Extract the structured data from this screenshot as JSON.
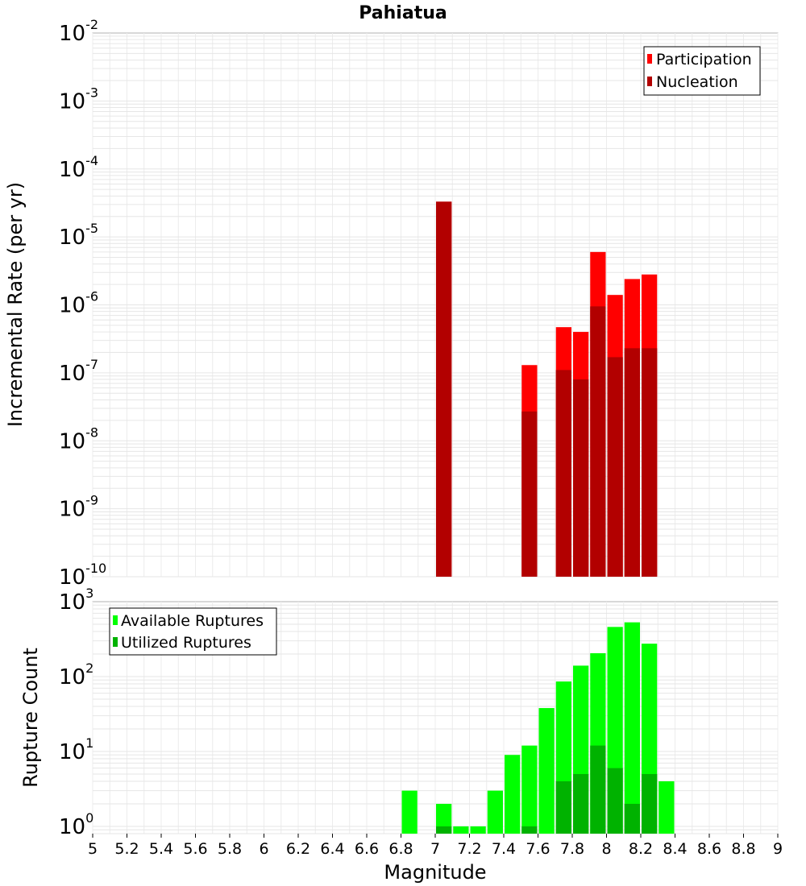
{
  "chart_data": [
    {
      "type": "bar",
      "title": "Pahiatua",
      "xlabel": "Magnitude",
      "ylabel": "Incremental Rate (per yr)",
      "yscale": "log",
      "xlim": [
        5,
        9
      ],
      "ylim": [
        1e-10,
        0.01
      ],
      "bar_width": 0.1,
      "grid": true,
      "legend": "top-right",
      "series": [
        {
          "name": "Participation",
          "color": "#ff0000",
          "x": [
            7.05,
            7.55,
            7.75,
            7.85,
            7.95,
            8.05,
            8.15,
            8.25
          ],
          "values": [
            3.3e-05,
            1.3e-07,
            4.7e-07,
            4e-07,
            6e-06,
            1.4e-06,
            2.4e-06,
            2.8e-06
          ]
        },
        {
          "name": "Nucleation",
          "color": "#b20000",
          "x": [
            7.05,
            7.55,
            7.75,
            7.85,
            7.95,
            8.05,
            8.15,
            8.25
          ],
          "values": [
            3.3e-05,
            2.7e-08,
            1.1e-07,
            8e-08,
            9.5e-07,
            1.7e-07,
            2.3e-07,
            2.3e-07
          ]
        }
      ]
    },
    {
      "type": "bar",
      "title": "",
      "xlabel": "Magnitude",
      "ylabel": "Rupture Count",
      "yscale": "log",
      "xlim": [
        5,
        9
      ],
      "ylim": [
        0.8,
        1000
      ],
      "bar_width": 0.1,
      "grid": true,
      "legend": "top-left",
      "series": [
        {
          "name": "Available Ruptures",
          "color": "#00ff00",
          "x": [
            6.85,
            7.05,
            7.15,
            7.25,
            7.35,
            7.45,
            7.55,
            7.65,
            7.75,
            7.85,
            7.95,
            8.05,
            8.15,
            8.25,
            8.35
          ],
          "values": [
            3,
            2,
            1,
            1,
            3,
            9,
            12,
            38,
            86,
            140,
            205,
            460,
            530,
            275,
            4
          ]
        },
        {
          "name": "Utilized Ruptures",
          "color": "#00b200",
          "x": [
            7.05,
            7.55,
            7.75,
            7.85,
            7.95,
            8.05,
            8.15,
            8.25
          ],
          "values": [
            1,
            1,
            4,
            5,
            12,
            6,
            2,
            5
          ]
        }
      ]
    }
  ],
  "x_ticks": [
    "5",
    "5.2",
    "5.4",
    "5.6",
    "5.8",
    "6",
    "6.2",
    "6.4",
    "6.6",
    "6.8",
    "7",
    "7.2",
    "7.4",
    "7.6",
    "7.8",
    "8",
    "8.2",
    "8.4",
    "8.6",
    "8.8",
    "9"
  ],
  "top_y_ticks": [
    {
      "base": "10",
      "exp": "-2"
    },
    {
      "base": "10",
      "exp": "-3"
    },
    {
      "base": "10",
      "exp": "-4"
    },
    {
      "base": "10",
      "exp": "-5"
    },
    {
      "base": "10",
      "exp": "-6"
    },
    {
      "base": "10",
      "exp": "-7"
    },
    {
      "base": "10",
      "exp": "-8"
    },
    {
      "base": "10",
      "exp": "-9"
    },
    {
      "base": "10",
      "exp": "-10"
    }
  ],
  "bottom_y_ticks": [
    {
      "base": "10",
      "exp": "3"
    },
    {
      "base": "10",
      "exp": "2"
    },
    {
      "base": "10",
      "exp": "1"
    },
    {
      "base": "10",
      "exp": "0"
    }
  ]
}
